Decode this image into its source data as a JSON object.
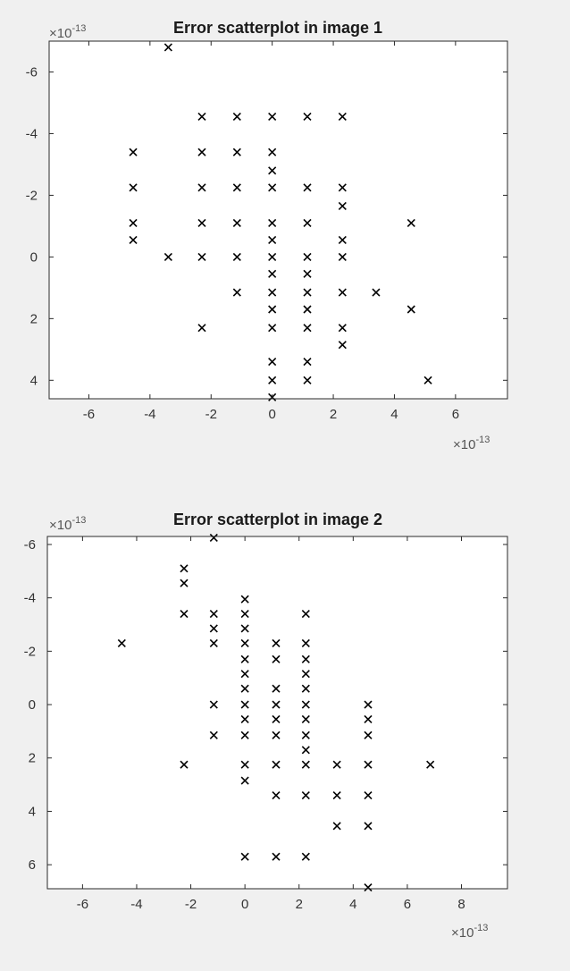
{
  "chart_data": [
    {
      "type": "scatter",
      "title": "Error scatterplot in image 1",
      "marker": "x",
      "marker_color": "#000000",
      "background": "#ffffff",
      "figure_background": "#f0f0f0",
      "y_axis_reversed": true,
      "grid": false,
      "x_exponent_label": "×10",
      "x_exponent": "-13",
      "y_exponent_label": "×10",
      "y_exponent": "-13",
      "xlim": [
        -7.3,
        7.7
      ],
      "ylim": [
        -7.0,
        4.6
      ],
      "xticks": [
        -6,
        -4,
        -2,
        0,
        2,
        4,
        6
      ],
      "xtick_labels": [
        "-6",
        "-4",
        "-2",
        "0",
        "2",
        "4",
        "6"
      ],
      "yticks": [
        -6,
        -4,
        -2,
        0,
        2,
        4
      ],
      "ytick_labels": [
        "-6",
        "-4",
        "-2",
        "0",
        "2",
        "4"
      ],
      "points": [
        [
          -3.4,
          -6.8
        ],
        [
          -2.3,
          -4.55
        ],
        [
          -1.15,
          -4.55
        ],
        [
          0,
          -4.55
        ],
        [
          1.15,
          -4.55
        ],
        [
          2.3,
          -4.55
        ],
        [
          -4.55,
          -3.4
        ],
        [
          -2.3,
          -3.4
        ],
        [
          -1.15,
          -3.4
        ],
        [
          0,
          -3.4
        ],
        [
          0,
          -2.8
        ],
        [
          -4.55,
          -2.25
        ],
        [
          -2.3,
          -2.25
        ],
        [
          -1.15,
          -2.25
        ],
        [
          0,
          -2.25
        ],
        [
          1.15,
          -2.25
        ],
        [
          2.3,
          -2.25
        ],
        [
          2.3,
          -1.65
        ],
        [
          -4.55,
          -1.1
        ],
        [
          -2.3,
          -1.1
        ],
        [
          -1.15,
          -1.1
        ],
        [
          0,
          -1.1
        ],
        [
          1.15,
          -1.1
        ],
        [
          4.55,
          -1.1
        ],
        [
          -4.55,
          -0.55
        ],
        [
          0,
          -0.55
        ],
        [
          2.3,
          -0.55
        ],
        [
          -3.4,
          0
        ],
        [
          -2.3,
          0
        ],
        [
          -1.15,
          0
        ],
        [
          0,
          0
        ],
        [
          1.15,
          0
        ],
        [
          2.3,
          0
        ],
        [
          0,
          0.55
        ],
        [
          1.15,
          0.55
        ],
        [
          -1.15,
          1.15
        ],
        [
          0,
          1.15
        ],
        [
          1.15,
          1.15
        ],
        [
          2.3,
          1.15
        ],
        [
          3.4,
          1.15
        ],
        [
          0,
          1.7
        ],
        [
          1.15,
          1.7
        ],
        [
          4.55,
          1.7
        ],
        [
          -2.3,
          2.3
        ],
        [
          0,
          2.3
        ],
        [
          1.15,
          2.3
        ],
        [
          2.3,
          2.3
        ],
        [
          2.3,
          2.85
        ],
        [
          0,
          3.4
        ],
        [
          1.15,
          3.4
        ],
        [
          0,
          4.0
        ],
        [
          1.15,
          4.0
        ],
        [
          5.1,
          4.0
        ],
        [
          0,
          4.55
        ]
      ]
    },
    {
      "type": "scatter",
      "title": "Error scatterplot in image 2",
      "marker": "x",
      "marker_color": "#000000",
      "background": "#ffffff",
      "figure_background": "#f0f0f0",
      "y_axis_reversed": true,
      "grid": false,
      "x_exponent_label": "×10",
      "x_exponent": "-13",
      "y_exponent_label": "×10",
      "y_exponent": "-13",
      "xlim": [
        -7.3,
        9.7
      ],
      "ylim": [
        -6.3,
        6.9
      ],
      "xticks": [
        -6,
        -4,
        -2,
        0,
        2,
        4,
        6,
        8
      ],
      "xtick_labels": [
        "-6",
        "-4",
        "-2",
        "0",
        "2",
        "4",
        "6",
        "8"
      ],
      "yticks": [
        -6,
        -4,
        -2,
        0,
        2,
        4,
        6
      ],
      "ytick_labels": [
        "-6",
        "-4",
        "-2",
        "0",
        "2",
        "4",
        "6"
      ],
      "points": [
        [
          -1.15,
          -6.25
        ],
        [
          -2.25,
          -5.1
        ],
        [
          -2.25,
          -4.55
        ],
        [
          0,
          -3.95
        ],
        [
          -2.25,
          -3.4
        ],
        [
          -1.15,
          -3.4
        ],
        [
          0,
          -3.4
        ],
        [
          2.25,
          -3.4
        ],
        [
          -1.15,
          -2.85
        ],
        [
          0,
          -2.85
        ],
        [
          -4.55,
          -2.3
        ],
        [
          -1.15,
          -2.3
        ],
        [
          0,
          -2.3
        ],
        [
          1.15,
          -2.3
        ],
        [
          2.25,
          -2.3
        ],
        [
          0,
          -1.7
        ],
        [
          1.15,
          -1.7
        ],
        [
          2.25,
          -1.7
        ],
        [
          0,
          -1.15
        ],
        [
          2.25,
          -1.15
        ],
        [
          0,
          -0.6
        ],
        [
          1.15,
          -0.6
        ],
        [
          2.25,
          -0.6
        ],
        [
          -1.15,
          0
        ],
        [
          0,
          0
        ],
        [
          1.15,
          0
        ],
        [
          2.25,
          0
        ],
        [
          4.55,
          0
        ],
        [
          0,
          0.55
        ],
        [
          1.15,
          0.55
        ],
        [
          2.25,
          0.55
        ],
        [
          4.55,
          0.55
        ],
        [
          -1.15,
          1.15
        ],
        [
          0,
          1.15
        ],
        [
          1.15,
          1.15
        ],
        [
          2.25,
          1.15
        ],
        [
          4.55,
          1.15
        ],
        [
          2.25,
          1.7
        ],
        [
          -2.25,
          2.25
        ],
        [
          0,
          2.25
        ],
        [
          1.15,
          2.25
        ],
        [
          2.25,
          2.25
        ],
        [
          3.4,
          2.25
        ],
        [
          4.55,
          2.25
        ],
        [
          6.85,
          2.25
        ],
        [
          0,
          2.85
        ],
        [
          1.15,
          3.4
        ],
        [
          2.25,
          3.4
        ],
        [
          3.4,
          3.4
        ],
        [
          4.55,
          3.4
        ],
        [
          3.4,
          4.55
        ],
        [
          4.55,
          4.55
        ],
        [
          0,
          5.7
        ],
        [
          1.15,
          5.7
        ],
        [
          2.25,
          5.7
        ],
        [
          4.55,
          6.85
        ]
      ]
    }
  ]
}
